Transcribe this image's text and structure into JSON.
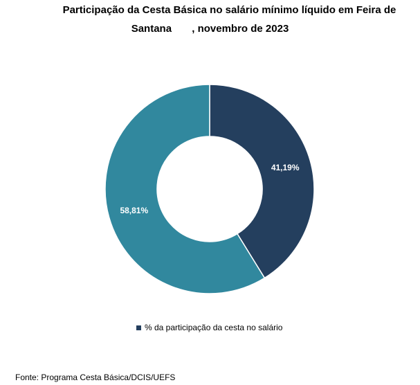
{
  "chart_data": {
    "type": "donut",
    "title_line1": "Participação da Cesta Básica no salário mínimo líquido em Feira de",
    "title_line2": "Santana       , novembro de 2023",
    "slices": [
      {
        "label": "41,19%",
        "value": 41.19,
        "color": "#243f5e"
      },
      {
        "label": "58,81%",
        "value": 58.81,
        "color": "#31889e"
      }
    ],
    "legend": [
      {
        "name": "% da participação da cesta no salário",
        "color": "#243f5e"
      }
    ]
  },
  "source": "Fonte: Programa Cesta Básica/DCIS/UEFS"
}
